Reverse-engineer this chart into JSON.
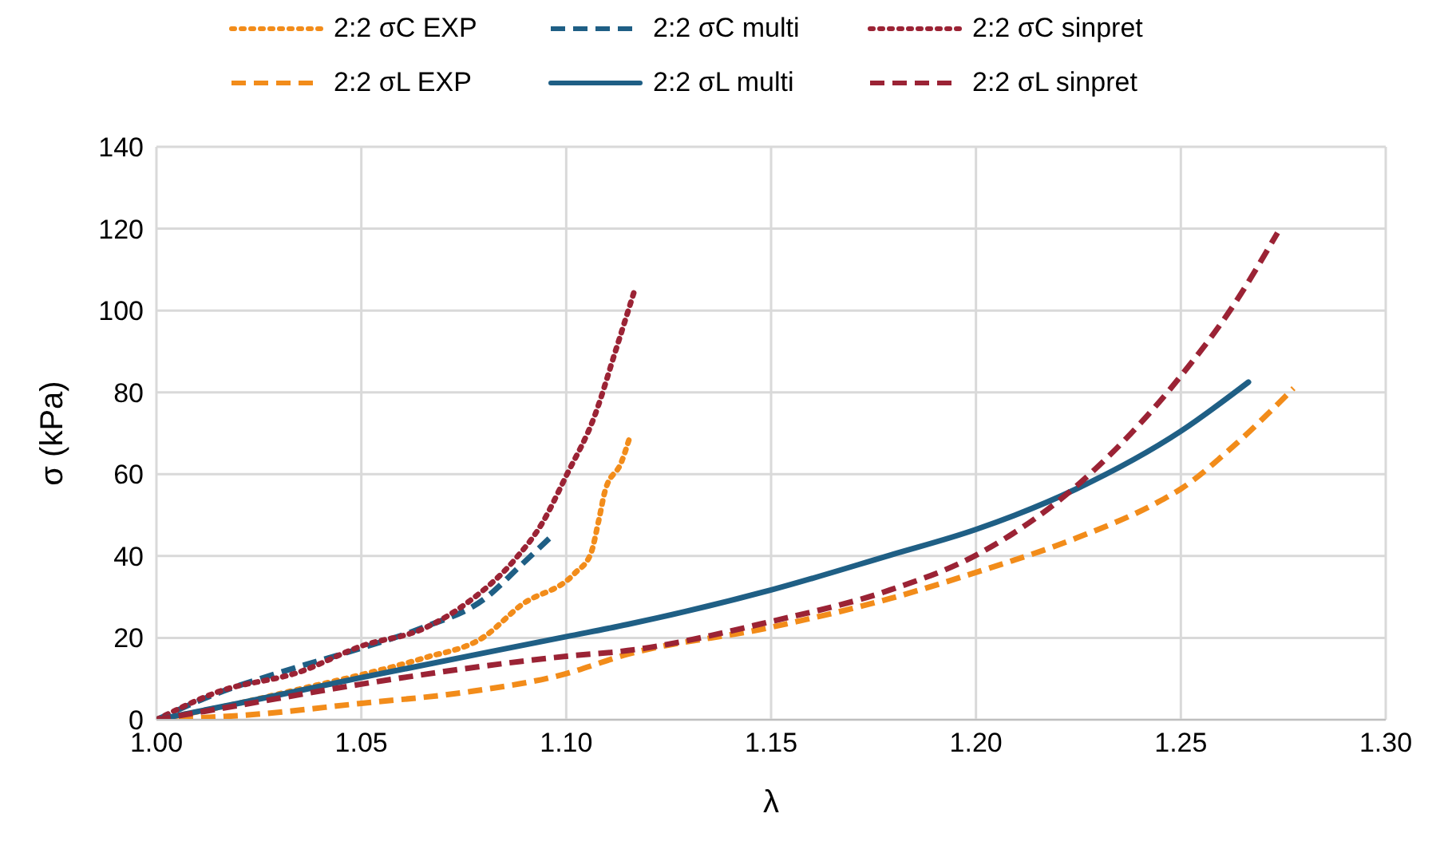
{
  "chart_data": {
    "type": "line",
    "xlabel": "λ",
    "ylabel": "σ (kPa)",
    "xlim": [
      1.0,
      1.3
    ],
    "xticks": [
      {
        "value": 1.0,
        "label": "1.00"
      },
      {
        "value": 1.05,
        "label": "1.05"
      },
      {
        "value": 1.1,
        "label": "1.10"
      },
      {
        "value": 1.15,
        "label": "1.15"
      },
      {
        "value": 1.2,
        "label": "1.20"
      },
      {
        "value": 1.25,
        "label": "1.25"
      },
      {
        "value": 1.3,
        "label": "1.30"
      }
    ],
    "ylim": [
      0,
      140
    ],
    "yticks": [
      0,
      20,
      40,
      60,
      80,
      100,
      120,
      140
    ],
    "grid": true,
    "legend": "top",
    "marker": "none",
    "series": [
      {
        "name": "2:2 σC EXP",
        "color": "#f28c1a",
        "line_style": "dotted",
        "x": [
          1.0,
          1.02,
          1.035,
          1.05,
          1.065,
          1.08,
          1.089,
          1.102,
          1.106,
          1.108,
          1.1095,
          1.1135,
          1.1155
        ],
        "values": [
          0,
          4,
          7.5,
          11,
          15,
          20.3,
          28,
          35.7,
          40.6,
          49,
          56,
          63,
          69
        ]
      },
      {
        "name": "2:2 σC multi",
        "color": "#1f5f85",
        "line_style": "dashed",
        "x": [
          1.0,
          1.015,
          1.03,
          1.05,
          1.065,
          1.08,
          1.089,
          1.0966
        ],
        "values": [
          0,
          6.5,
          11.5,
          17.5,
          22.5,
          29.5,
          37.8,
          45
        ]
      },
      {
        "name": "2:2 σC sinpret",
        "color": "#9b2335",
        "line_style": "dotted",
        "x": [
          1.0,
          1.015,
          1.035,
          1.05,
          1.0655,
          1.076,
          1.0876,
          1.094,
          1.1,
          1.107,
          1.112,
          1.1167
        ],
        "values": [
          0,
          6.8,
          11.7,
          18,
          22.4,
          28.7,
          39.3,
          47.8,
          59.6,
          74.4,
          90,
          105
        ]
      },
      {
        "name": "2:2 σL EXP",
        "color": "#f28c1a",
        "line_style": "dashed",
        "x": [
          1.0,
          1.011,
          1.02,
          1.05,
          1.076,
          1.099,
          1.115,
          1.15,
          1.179,
          1.2,
          1.2245,
          1.2439,
          1.25,
          1.263,
          1.2775
        ],
        "values": [
          0,
          0.5,
          1,
          4,
          6.8,
          11,
          16,
          22.6,
          29.6,
          36,
          44.4,
          52.9,
          56.4,
          67,
          81
        ]
      },
      {
        "name": "2:2 σL multi",
        "color": "#1f5f85",
        "line_style": "solid",
        "x": [
          1.0,
          1.02,
          1.05,
          1.1,
          1.115,
          1.15,
          1.179,
          1.2,
          1.2245,
          1.25,
          1.2665
        ],
        "values": [
          0,
          4,
          10.3,
          20.3,
          23.3,
          31.7,
          40.2,
          46.5,
          56.4,
          70.5,
          82.5
        ]
      },
      {
        "name": "2:2 σL sinpret",
        "color": "#9b2335",
        "line_style": "dashed",
        "x": [
          1.0,
          1.02,
          1.05,
          1.1,
          1.115,
          1.15,
          1.179,
          1.2,
          1.2245,
          1.25,
          1.263,
          1.2736
        ],
        "values": [
          0,
          3.5,
          8.7,
          15.5,
          16.9,
          24,
          31.7,
          40.2,
          57.1,
          84,
          101.5,
          119
        ]
      }
    ]
  }
}
